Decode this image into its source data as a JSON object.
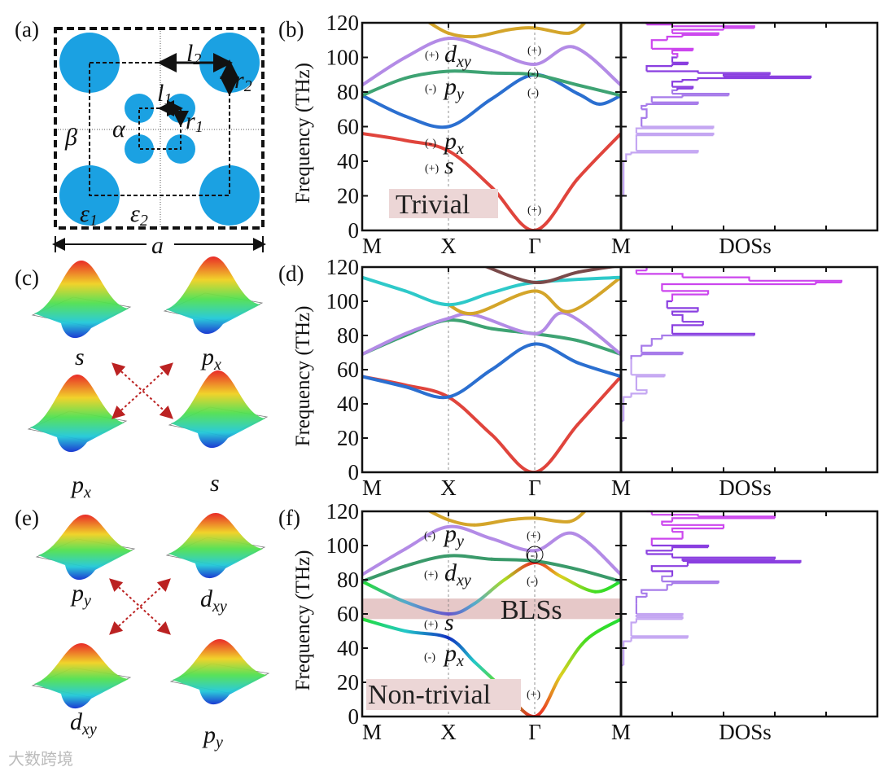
{
  "panel_labels": {
    "a": "(a)",
    "b": "(b)",
    "c": "(c)",
    "d": "(d)",
    "e": "(e)",
    "f": "(f)"
  },
  "schematic": {
    "l2": "l",
    "l2_sub": "2",
    "r2": "r",
    "r2_sub": "2",
    "l1": "l",
    "l1_sub": "1",
    "r1": "r",
    "r1_sub": "1",
    "beta": "β",
    "alpha": "α",
    "eps1": "ε",
    "eps1_sub": "1",
    "eps2": "ε",
    "eps2_sub": "2",
    "a": "a",
    "fill": "#1ba1e2"
  },
  "mode_panels": {
    "c": [
      {
        "main": "s",
        "sub": ""
      },
      {
        "main": "p",
        "sub": "x"
      },
      {
        "main": "p",
        "sub": "x"
      },
      {
        "main": "s",
        "sub": ""
      }
    ],
    "e": [
      {
        "main": "p",
        "sub": "y"
      },
      {
        "main": "d",
        "sub": "xy"
      },
      {
        "main": "d",
        "sub": "xy"
      },
      {
        "main": "p",
        "sub": "y"
      }
    ]
  },
  "annotations": {
    "b": {
      "box": "Trivial",
      "x_dxy": {
        "par": "(+)",
        "main": "d",
        "sub": "xy"
      },
      "x_py": {
        "par": "(-)",
        "main": "p",
        "sub": "y"
      },
      "x_px": {
        "par": "(-)",
        "main": "p",
        "sub": "x"
      },
      "x_s": {
        "par": "(+)",
        "main": "s",
        "sub": ""
      },
      "g1": "(+)",
      "g2": "(-)",
      "g3": "(-)",
      "g4": "(+)"
    },
    "f": {
      "box": "Non-trivial",
      "gap": "BLSs",
      "x_py": {
        "par": "(-)",
        "main": "p",
        "sub": "y"
      },
      "x_dxy": {
        "par": "(+)",
        "main": "d",
        "sub": "xy"
      },
      "x_s": {
        "par": "(+)",
        "main": "s",
        "sub": ""
      },
      "x_px": {
        "par": "(-)",
        "main": "p",
        "sub": "x"
      },
      "g1": "(+)",
      "g2": "(-)",
      "g3": "(-)",
      "g4": "(+)"
    }
  },
  "watermark": "大数跨境",
  "chart_data": [
    {
      "panel": "b",
      "type": "line",
      "title": "",
      "ylabel": "Frequency (THz)",
      "ylim": [
        0,
        120
      ],
      "yticks": [
        0,
        20,
        40,
        60,
        80,
        100,
        120
      ],
      "xticks": [
        "M",
        "X",
        "Γ",
        "M"
      ],
      "dos_label": "DOSs",
      "bands": [
        {
          "color": "#e0443c",
          "points": [
            [
              0,
              56
            ],
            [
              0.5,
              52
            ],
            [
              1,
              46
            ],
            [
              1.5,
              25
            ],
            [
              2,
              0
            ],
            [
              2.5,
              30
            ],
            [
              3,
              56
            ]
          ]
        },
        {
          "color": "#2b6fd0",
          "points": [
            [
              0,
              78
            ],
            [
              0.5,
              66
            ],
            [
              1,
              60
            ],
            [
              1.5,
              76
            ],
            [
              2,
              90
            ],
            [
              2.5,
              79
            ],
            [
              2.75,
              73
            ],
            [
              3,
              78
            ]
          ]
        },
        {
          "color": "#3ea373",
          "points": [
            [
              0,
              78
            ],
            [
              0.5,
              88
            ],
            [
              1,
              92
            ],
            [
              1.5,
              91
            ],
            [
              2,
              90
            ],
            [
              2.5,
              84
            ],
            [
              3,
              78
            ]
          ]
        },
        {
          "color": "#b38be6",
          "points": [
            [
              0,
              84
            ],
            [
              0.5,
              100
            ],
            [
              1,
              111
            ],
            [
              1.5,
              104
            ],
            [
              2,
              96
            ],
            [
              2.45,
              106
            ],
            [
              3,
              84
            ]
          ]
        },
        {
          "color": "#d4a52a",
          "points": [
            [
              0.75,
              121
            ],
            [
              1,
              114
            ],
            [
              1.3,
              112
            ],
            [
              1.7,
              116
            ],
            [
              2,
              117
            ],
            [
              2.4,
              114
            ],
            [
              2.6,
              121
            ]
          ]
        }
      ],
      "dos": [
        [
          0,
          0
        ],
        [
          20,
          0.05
        ],
        [
          40,
          0.1
        ],
        [
          44,
          0.2
        ],
        [
          45,
          1.5
        ],
        [
          46,
          0.3
        ],
        [
          54,
          0.3
        ],
        [
          55,
          1.8
        ],
        [
          56,
          0.3
        ],
        [
          58,
          0.3
        ],
        [
          59,
          1.8
        ],
        [
          60,
          0.4
        ],
        [
          65,
          0.5
        ],
        [
          70,
          0.4
        ],
        [
          72,
          0.5
        ],
        [
          73,
          1.5
        ],
        [
          74,
          0.6
        ],
        [
          77,
          1.2
        ],
        [
          78,
          2.1
        ],
        [
          79,
          1.0
        ],
        [
          81,
          1.1
        ],
        [
          82,
          1.4
        ],
        [
          83,
          1.0
        ],
        [
          86,
          1.2
        ],
        [
          87,
          1.5
        ],
        [
          88,
          3.7
        ],
        [
          89,
          2.0
        ],
        [
          90,
          2.9
        ],
        [
          91,
          1.5
        ],
        [
          92,
          0.5
        ],
        [
          94,
          0.5
        ],
        [
          95,
          1.0
        ],
        [
          96,
          1.3
        ],
        [
          97,
          1.0
        ],
        [
          100,
          1.1
        ],
        [
          102,
          1.0
        ],
        [
          104,
          1.4
        ],
        [
          105,
          0.6
        ],
        [
          108,
          0.6
        ],
        [
          110,
          0.9
        ],
        [
          112,
          1.2
        ],
        [
          113,
          1.9
        ],
        [
          114,
          1.0
        ],
        [
          116,
          2.0
        ],
        [
          117,
          2.6
        ],
        [
          118,
          1.0
        ],
        [
          119,
          0.5
        ],
        [
          120,
          0.4
        ]
      ]
    },
    {
      "panel": "d",
      "type": "line",
      "title": "",
      "ylabel": "Frequency (THz)",
      "ylim": [
        0,
        120
      ],
      "yticks": [
        0,
        20,
        40,
        60,
        80,
        100,
        120
      ],
      "xticks": [
        "M",
        "X",
        "Γ",
        "M"
      ],
      "dos_label": "DOSs",
      "bands": [
        {
          "color": "#e0443c",
          "points": [
            [
              0,
              56
            ],
            [
              0.5,
              51
            ],
            [
              1,
              44
            ],
            [
              1.5,
              22
            ],
            [
              2,
              0
            ],
            [
              2.5,
              28
            ],
            [
              3,
              56
            ]
          ]
        },
        {
          "color": "#2b6fd0",
          "points": [
            [
              0,
              56
            ],
            [
              0.5,
              50
            ],
            [
              1,
              44
            ],
            [
              1.5,
              60
            ],
            [
              2,
              75
            ],
            [
              2.5,
              64
            ],
            [
              3,
              56
            ]
          ]
        },
        {
          "color": "#3ea373",
          "points": [
            [
              0,
              69
            ],
            [
              0.5,
              80
            ],
            [
              1,
              89
            ],
            [
              1.5,
              84
            ],
            [
              2,
              81
            ],
            [
              2.5,
              77
            ],
            [
              3,
              69
            ]
          ]
        },
        {
          "color": "#b38be6",
          "points": [
            [
              0,
              69
            ],
            [
              0.5,
              81
            ],
            [
              1,
              90
            ],
            [
              1.3,
              92
            ],
            [
              2,
              81
            ],
            [
              2.35,
              93
            ],
            [
              3,
              69
            ]
          ]
        },
        {
          "color": "#d4a52a",
          "points": [
            [
              1,
              98
            ],
            [
              1.3,
              93
            ],
            [
              2,
              106
            ],
            [
              2.4,
              94
            ],
            [
              3,
              114
            ]
          ]
        },
        {
          "color": "#2ec9c9",
          "points": [
            [
              0,
              114
            ],
            [
              0.5,
              106
            ],
            [
              1,
              98
            ],
            [
              1.5,
              105
            ],
            [
              2,
              111
            ],
            [
              3,
              114
            ]
          ]
        },
        {
          "color": "#7a4a4a",
          "points": [
            [
              1.4,
              121
            ],
            [
              2,
              111
            ],
            [
              2.5,
              117
            ],
            [
              3,
              121
            ]
          ]
        }
      ],
      "dos": [
        [
          0,
          0
        ],
        [
          30,
          0.05
        ],
        [
          44,
          0.2
        ],
        [
          46,
          0.5
        ],
        [
          48,
          0.3
        ],
        [
          55,
          0.3
        ],
        [
          56,
          0.85
        ],
        [
          57,
          0.2
        ],
        [
          66,
          0.2
        ],
        [
          68,
          0.4
        ],
        [
          69,
          1.2
        ],
        [
          70,
          0.4
        ],
        [
          74,
          0.6
        ],
        [
          78,
          0.8
        ],
        [
          80,
          2.6
        ],
        [
          81,
          1.0
        ],
        [
          84,
          1.0
        ],
        [
          86,
          1.6
        ],
        [
          88,
          1.2
        ],
        [
          92,
          1.0
        ],
        [
          94,
          1.5
        ],
        [
          96,
          0.9
        ],
        [
          100,
          1.0
        ],
        [
          104,
          1.7
        ],
        [
          106,
          0.8
        ],
        [
          110,
          3.8
        ],
        [
          111,
          4.3
        ],
        [
          112,
          2.5
        ],
        [
          114,
          1.2
        ],
        [
          116,
          0.3
        ],
        [
          118,
          0.5
        ],
        [
          120,
          0.4
        ]
      ]
    },
    {
      "panel": "f",
      "type": "line",
      "title": "",
      "ylabel": "Frequency (THz)",
      "ylim": [
        0,
        120
      ],
      "yticks": [
        0,
        20,
        40,
        60,
        80,
        100,
        120
      ],
      "xticks": [
        "M",
        "X",
        "Γ",
        "M"
      ],
      "dos_label": "DOSs",
      "bands": [
        {
          "points": [
            [
              0,
              57
            ],
            [
              0.5,
              50
            ],
            [
              1,
              46
            ],
            [
              1.3,
              32
            ],
            [
              1.6,
              18
            ],
            [
              2,
              0
            ],
            [
              2.3,
              24
            ],
            [
              2.6,
              45
            ],
            [
              3,
              57
            ]
          ],
          "colors": [
            "#22dd33",
            "#22c8c8",
            "#1030c0",
            "#22c8c8",
            "#66dd22",
            "#ee2222",
            "#ddd020",
            "#44dd22",
            "#22dd33"
          ]
        },
        {
          "points": [
            [
              0,
              79
            ],
            [
              0.5,
              67
            ],
            [
              1,
              60
            ],
            [
              1.3,
              66
            ],
            [
              1.65,
              80
            ],
            [
              2,
              90
            ],
            [
              2.3,
              82
            ],
            [
              2.7,
              73
            ],
            [
              3,
              79
            ]
          ],
          "colors": [
            "#22dd33",
            "#55aacc",
            "#6655cc",
            "#55aacc",
            "#aadd22",
            "#ee2222",
            "#ddd020",
            "#44dd22",
            "#22dd33"
          ]
        },
        {
          "color": "#3a9a6a",
          "points": [
            [
              0,
              79
            ],
            [
              0.5,
              88
            ],
            [
              1,
              94
            ],
            [
              1.5,
              92
            ],
            [
              2,
              91
            ],
            [
              2.5,
              86
            ],
            [
              3,
              79
            ]
          ]
        },
        {
          "color": "#b38be6",
          "points": [
            [
              0,
              83
            ],
            [
              0.5,
              98
            ],
            [
              1,
              111
            ],
            [
              1.5,
              104
            ],
            [
              2,
              97
            ],
            [
              2.45,
              107
            ],
            [
              3,
              83
            ]
          ]
        },
        {
          "color": "#d4a52a",
          "points": [
            [
              0.75,
              121
            ],
            [
              1,
              115
            ],
            [
              1.3,
              112
            ],
            [
              1.7,
              115
            ],
            [
              2,
              116
            ],
            [
              2.4,
              114
            ],
            [
              2.6,
              121
            ]
          ]
        }
      ],
      "gap_band": [
        57,
        69
      ],
      "dos": [
        [
          0,
          0
        ],
        [
          30,
          0.05
        ],
        [
          44,
          0.2
        ],
        [
          46,
          1.3
        ],
        [
          47,
          0.2
        ],
        [
          55,
          0.3
        ],
        [
          57,
          1.2
        ],
        [
          58,
          0.3
        ],
        [
          59,
          1.2
        ],
        [
          60,
          0.3
        ],
        [
          66,
          0.3
        ],
        [
          70,
          0.5
        ],
        [
          72,
          0.4
        ],
        [
          74,
          0.9
        ],
        [
          77,
          1.0
        ],
        [
          78,
          1.9
        ],
        [
          79,
          0.8
        ],
        [
          82,
          1.0
        ],
        [
          85,
          0.6
        ],
        [
          88,
          1.3
        ],
        [
          90,
          3.5
        ],
        [
          91,
          1.2
        ],
        [
          92,
          3.0
        ],
        [
          93,
          1.0
        ],
        [
          95,
          0.5
        ],
        [
          97,
          1.0
        ],
        [
          99,
          1.7
        ],
        [
          100,
          0.6
        ],
        [
          104,
          1.2
        ],
        [
          108,
          1.0
        ],
        [
          110,
          2.0
        ],
        [
          112,
          0.8
        ],
        [
          114,
          1.0
        ],
        [
          116,
          3.0
        ],
        [
          117,
          1.5
        ],
        [
          118,
          0.6
        ],
        [
          120,
          0.5
        ]
      ]
    }
  ]
}
